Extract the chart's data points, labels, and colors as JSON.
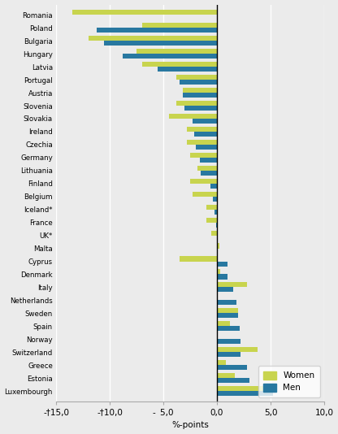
{
  "countries": [
    "Luxembourgh",
    "Estonia",
    "Greece",
    "Switzerland",
    "Norway",
    "Spain",
    "Sweden",
    "Netherlands",
    "Italy",
    "Denmark",
    "Cyprus",
    "Malta",
    "UK*",
    "France",
    "Iceland*",
    "Belgium",
    "Finland",
    "Lithuania",
    "Germany",
    "Czechia",
    "Ireland",
    "Slovakia",
    "Slovenia",
    "Austria",
    "Portugal",
    "Latvia",
    "Hungary",
    "Bulgaria",
    "Poland",
    "Romania"
  ],
  "men": [
    5.2,
    3.0,
    2.8,
    2.2,
    2.2,
    2.1,
    2.0,
    1.8,
    1.5,
    1.0,
    1.0,
    0.1,
    0.0,
    -0.1,
    -0.2,
    -0.4,
    -0.6,
    -1.5,
    -1.6,
    -2.0,
    -2.1,
    -2.3,
    -3.0,
    -3.2,
    -3.5,
    -5.5,
    -8.8,
    -10.5,
    -11.2,
    0.0
  ],
  "women": [
    4.8,
    1.7,
    0.8,
    3.8,
    0.0,
    1.2,
    2.0,
    0.1,
    2.8,
    0.3,
    -3.5,
    0.2,
    -0.5,
    -1.0,
    -1.0,
    -2.3,
    -2.5,
    -1.8,
    -2.5,
    -2.8,
    -2.8,
    -4.5,
    -3.8,
    -3.2,
    -3.8,
    -7.0,
    -7.5,
    -12.0,
    -7.0,
    -13.5
  ],
  "color_women": "#c8d44e",
  "color_men": "#2878a0",
  "xlabel": "%-points",
  "xlim": [
    -15.0,
    10.0
  ],
  "xticks": [
    -15.0,
    -10.0,
    -5.0,
    0.0,
    5.0,
    10.0
  ],
  "xtick_labels": [
    "-†15,0",
    "-†10,0",
    "- 5,0",
    "0,0",
    "5,0",
    "10,0"
  ],
  "background_color": "#ebebeb",
  "plot_bg_color": "#ebebeb",
  "legend_women": "Women",
  "legend_men": "Men",
  "bar_height": 0.38,
  "figsize": [
    4.16,
    5.34
  ],
  "dpi": 100
}
